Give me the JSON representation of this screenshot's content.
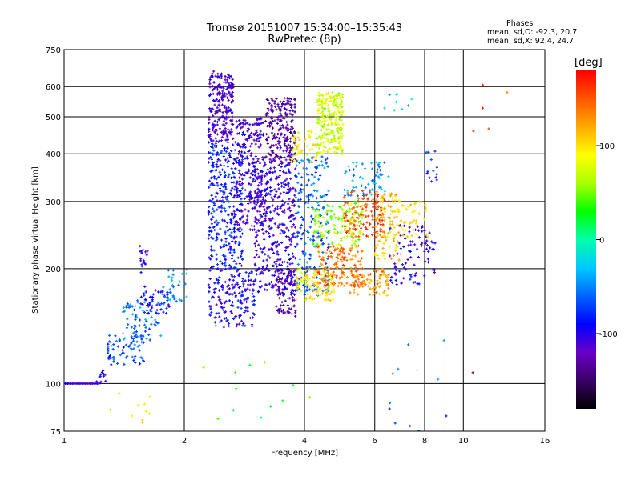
{
  "header": {
    "title_line1": "Tromsø 20151007 15:34:00–15:35:43",
    "title_line2": "RwPretec (8p)",
    "phases_title": "Phases",
    "stats_o": "mean, sd,O: -92.3, 20.7",
    "stats_x": "mean, sd,X:  92.4, 24.7"
  },
  "chart_data": {
    "type": "scatter",
    "xlabel": "Frequency [MHz]",
    "ylabel": "Stationary phase Virtual Height [km]",
    "x_scale": "log",
    "y_scale": "log",
    "xlim": [
      1,
      16
    ],
    "ylim": [
      75,
      750
    ],
    "x_ticks": [
      1,
      2,
      4,
      6,
      8,
      10,
      16
    ],
    "x_tick_labels": [
      "1",
      "2",
      "4",
      "6",
      "8",
      "10",
      "16"
    ],
    "y_ticks": [
      75,
      100,
      200,
      300,
      400,
      500,
      600,
      750
    ],
    "y_tick_labels": [
      "75",
      "100",
      "200",
      "300",
      "400",
      "500",
      "600",
      "750"
    ],
    "grid": true,
    "colorbar": {
      "label": "[deg]",
      "range": [
        -180,
        180
      ],
      "ticks": [
        100,
        0,
        -100
      ],
      "tick_labels": [
        "100",
        "0",
        "-100"
      ],
      "colors": [
        "#000000",
        "#3a0066",
        "#6a00c8",
        "#0000ff",
        "#0064ff",
        "#00c8ff",
        "#00ffaa",
        "#00ff00",
        "#aaff00",
        "#ffff00",
        "#ffaa00",
        "#ff5500",
        "#ff0000"
      ]
    },
    "clusters": [
      {
        "x": [
          1.0,
          1.22
        ],
        "y": [
          100,
          100
        ],
        "phase": -110,
        "n": 30,
        "shape": "line",
        "seed": 1
      },
      {
        "x": [
          1.2,
          1.3
        ],
        "y": [
          100,
          108
        ],
        "phase": -100,
        "n": 12,
        "seed": 2
      },
      {
        "x": [
          1.28,
          1.6
        ],
        "y": [
          112,
          135
        ],
        "phase": -70,
        "n": 70,
        "seed": 3
      },
      {
        "x": [
          1.4,
          1.75
        ],
        "y": [
          130,
          165
        ],
        "phase": -55,
        "n": 70,
        "seed": 4
      },
      {
        "x": [
          1.55,
          1.85
        ],
        "y": [
          150,
          180
        ],
        "phase": -90,
        "n": 50,
        "seed": 5
      },
      {
        "x": [
          1.55,
          1.62
        ],
        "y": [
          195,
          230
        ],
        "phase": -100,
        "n": 18,
        "seed": 6
      },
      {
        "x": [
          1.75,
          2.05
        ],
        "y": [
          160,
          200
        ],
        "phase": -45,
        "n": 30,
        "seed": 7
      },
      {
        "x": [
          2.3,
          2.65
        ],
        "y": [
          430,
          660
        ],
        "phase": -115,
        "n": 220,
        "seed": 8
      },
      {
        "x": [
          2.3,
          2.8
        ],
        "y": [
          200,
          430
        ],
        "phase": -85,
        "n": 340,
        "seed": 9
      },
      {
        "x": [
          2.3,
          3.0
        ],
        "y": [
          140,
          200
        ],
        "phase": -95,
        "n": 180,
        "seed": 10
      },
      {
        "x": [
          2.7,
          3.2
        ],
        "y": [
          250,
          500
        ],
        "phase": -110,
        "n": 240,
        "seed": 11
      },
      {
        "x": [
          3.2,
          3.8
        ],
        "y": [
          380,
          560
        ],
        "phase": -130,
        "n": 220,
        "seed": 12
      },
      {
        "x": [
          3.0,
          3.8
        ],
        "y": [
          170,
          380
        ],
        "phase": -105,
        "n": 380,
        "seed": 13
      },
      {
        "x": [
          3.4,
          3.8
        ],
        "y": [
          150,
          200
        ],
        "phase": -125,
        "n": 90,
        "seed": 14
      },
      {
        "x": [
          3.7,
          4.3
        ],
        "y": [
          380,
          460
        ],
        "phase": 90,
        "n": 50,
        "seed": 15
      },
      {
        "x": [
          4.3,
          5.0
        ],
        "y": [
          400,
          580
        ],
        "phase": 75,
        "n": 240,
        "seed": 16
      },
      {
        "x": [
          3.8,
          4.6
        ],
        "y": [
          170,
          400
        ],
        "phase": -60,
        "n": 200,
        "seed": 17
      },
      {
        "x": [
          3.8,
          4.8
        ],
        "y": [
          165,
          200
        ],
        "phase": 95,
        "n": 110,
        "seed": 18
      },
      {
        "x": [
          4.3,
          5.6
        ],
        "y": [
          180,
          230
        ],
        "phase": 140,
        "n": 150,
        "seed": 19
      },
      {
        "x": [
          4.2,
          5.6
        ],
        "y": [
          230,
          300
        ],
        "phase": 60,
        "n": 140,
        "seed": 20
      },
      {
        "x": [
          5.0,
          6.4
        ],
        "y": [
          240,
          320
        ],
        "phase": 150,
        "n": 140,
        "seed": 21
      },
      {
        "x": [
          5.0,
          6.5
        ],
        "y": [
          310,
          380
        ],
        "phase": -40,
        "n": 60,
        "seed": 22
      },
      {
        "x": [
          6.0,
          7.0
        ],
        "y": [
          210,
          320
        ],
        "phase": 110,
        "n": 100,
        "seed": 23
      },
      {
        "x": [
          5.2,
          6.5
        ],
        "y": [
          170,
          200
        ],
        "phase": 130,
        "n": 80,
        "seed": 24
      },
      {
        "x": [
          6.5,
          7.8
        ],
        "y": [
          180,
          260
        ],
        "phase": -100,
        "n": 60,
        "seed": 25
      },
      {
        "x": [
          7.0,
          8.2
        ],
        "y": [
          240,
          300
        ],
        "phase": 100,
        "n": 40,
        "seed": 26
      },
      {
        "x": [
          7.8,
          8.5
        ],
        "y": [
          190,
          260
        ],
        "phase": -110,
        "n": 30,
        "seed": 27
      },
      {
        "x": [
          8.0,
          8.6
        ],
        "y": [
          330,
          420
        ],
        "phase": -80,
        "n": 14,
        "seed": 28
      },
      {
        "x": [
          6.2,
          7.5
        ],
        "y": [
          520,
          580
        ],
        "phase": -20,
        "n": 10,
        "seed": 29
      },
      {
        "x": [
          1.3,
          1.7
        ],
        "y": [
          78,
          95
        ],
        "phase": 90,
        "n": 10,
        "seed": 30
      },
      {
        "x": [
          2.2,
          4.2
        ],
        "y": [
          80,
          120
        ],
        "phase": 30,
        "n": 12,
        "seed": 31
      },
      {
        "x": [
          6.5,
          9.5
        ],
        "y": [
          75,
          130
        ],
        "phase": -60,
        "n": 12,
        "seed": 32
      },
      {
        "x": [
          10.5,
          13.0
        ],
        "y": [
          430,
          660
        ],
        "phase": 150,
        "n": 5,
        "seed": 33
      },
      {
        "x": [
          10.5,
          11.0
        ],
        "y": [
          105,
          108
        ],
        "phase": -105,
        "n": 1,
        "seed": 34
      }
    ]
  }
}
